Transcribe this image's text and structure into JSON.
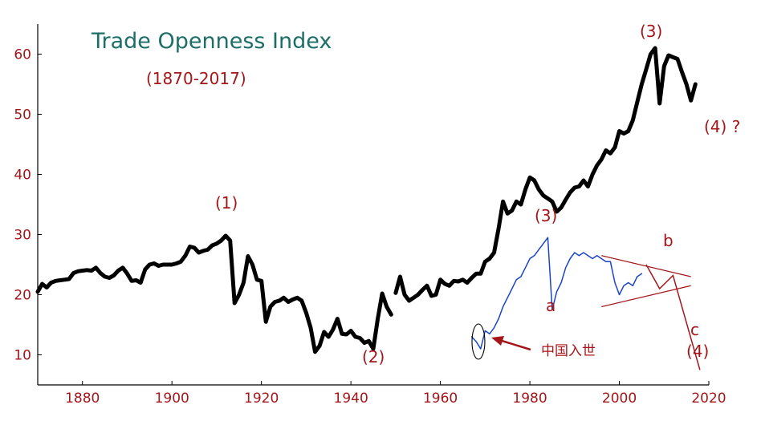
{
  "chart_data": {
    "type": "line",
    "title": "Trade Openness Index",
    "subtitle": "(1870-2017)",
    "xlim": [
      1870,
      2020
    ],
    "ylim": [
      5,
      65
    ],
    "x_ticks": [
      1880,
      1900,
      1920,
      1940,
      1960,
      1980,
      2000,
      2020
    ],
    "y_ticks": [
      10,
      20,
      30,
      40,
      50,
      60
    ],
    "grid": false,
    "colors": {
      "main": "#000000",
      "detail": "#1a44c8",
      "annotation": "#a4161a",
      "title": "#1e6e68"
    },
    "series": [
      {
        "x": [
          1870,
          1871,
          1872,
          1873,
          1874,
          1875,
          1876,
          1877,
          1878,
          1879,
          1880,
          1881,
          1882,
          1883,
          1884,
          1885,
          1886,
          1887,
          1888,
          1889,
          1890,
          1891,
          1892,
          1893,
          1894,
          1895,
          1896,
          1897,
          1898,
          1899,
          1900,
          1901,
          1902,
          1903,
          1904,
          1905,
          1906,
          1907,
          1908,
          1909,
          1910,
          1911,
          1912,
          1913,
          1914,
          1915,
          1916,
          1917,
          1918,
          1919,
          1920,
          1921,
          1922,
          1923,
          1924,
          1925,
          1926,
          1927,
          1928,
          1929,
          1930,
          1931,
          1932,
          1933,
          1934,
          1935,
          1936,
          1937,
          1938,
          1939,
          1940,
          1941,
          1942,
          1943,
          1944,
          1945,
          1946,
          1947,
          1948,
          1949
        ],
        "y": [
          20.5,
          21.8,
          21.2,
          22.0,
          22.3,
          22.4,
          22.5,
          22.6,
          23.6,
          23.9,
          24.0,
          24.1,
          24.0,
          24.5,
          23.6,
          23.0,
          22.8,
          23.2,
          24.0,
          24.5,
          23.5,
          22.3,
          22.4,
          22.0,
          24.2,
          25.0,
          25.2,
          24.8,
          25.0,
          25.0,
          25.0,
          25.2,
          25.5,
          26.5,
          28.0,
          27.8,
          27.0,
          27.3,
          27.5,
          28.2,
          28.5,
          29.0,
          29.8,
          29.0,
          18.6,
          20.0,
          22.0,
          26.4,
          25.0,
          22.5,
          22.3,
          15.5,
          18.0,
          18.8,
          19.0,
          19.5,
          18.8,
          19.2,
          19.5,
          19.0,
          17.0,
          14.5,
          10.5,
          11.5,
          13.8,
          13.0,
          14.2,
          16.0,
          13.5,
          13.4,
          14.0,
          13.0,
          12.8,
          12.0,
          12.3,
          11.0,
          16.0,
          20.2,
          18.0,
          16.7
        ]
      },
      {
        "x": [
          1950,
          1951,
          1952,
          1953,
          1954,
          1955,
          1956,
          1957,
          1958,
          1959,
          1960,
          1961,
          1962,
          1963,
          1964,
          1965,
          1966,
          1967,
          1968,
          1969,
          1970,
          1971,
          1972,
          1973,
          1974,
          1975,
          1976,
          1977,
          1978,
          1979,
          1980,
          1981,
          1982,
          1983,
          1984,
          1985,
          1986,
          1987,
          1988,
          1989,
          1990,
          1991,
          1992,
          1993,
          1994,
          1995,
          1996,
          1997,
          1998,
          1999,
          2000,
          2001,
          2002,
          2003,
          2004,
          2005,
          2006,
          2007,
          2008,
          2009,
          2010,
          2011,
          2012,
          2013,
          2014,
          2015,
          2016,
          2017
        ],
        "y": [
          20.3,
          23.0,
          20.0,
          19.0,
          19.5,
          20.0,
          20.8,
          21.5,
          19.8,
          20.0,
          22.5,
          21.8,
          21.5,
          22.3,
          22.2,
          22.5,
          22.0,
          22.8,
          23.5,
          23.5,
          25.5,
          26.0,
          27.0,
          31.0,
          35.5,
          33.5,
          34.0,
          35.5,
          35.0,
          37.5,
          39.5,
          39.0,
          37.5,
          36.5,
          36.0,
          35.5,
          33.8,
          34.5,
          35.8,
          37.0,
          37.8,
          38.0,
          39.0,
          38.0,
          40.0,
          41.5,
          42.5,
          44.0,
          43.5,
          44.5,
          47.2,
          46.8,
          47.2,
          49.0,
          52.0,
          55.0,
          57.5,
          60.0,
          61.0,
          51.8,
          58.0,
          59.8,
          59.5,
          59.2,
          57.0,
          55.0,
          52.3,
          55.0
        ]
      },
      {
        "x": [
          1967,
          1968,
          1969,
          1970,
          1971,
          1972,
          1973,
          1974,
          1975,
          1976,
          1977,
          1978,
          1979,
          1980,
          1981,
          1982,
          1983,
          1984,
          1985,
          1986,
          1987,
          1988,
          1989,
          1990,
          1991,
          1992,
          1993,
          1994,
          1995,
          1996,
          1997,
          1998,
          1999,
          2000,
          2001,
          2002,
          2003,
          2004,
          2005
        ],
        "y": [
          13.0,
          12.2,
          11.0,
          14.0,
          13.5,
          14.5,
          16.0,
          18.0,
          19.5,
          21.0,
          22.5,
          23.0,
          24.5,
          26.0,
          26.5,
          27.5,
          28.5,
          29.5,
          17.5,
          20.5,
          22.0,
          24.5,
          26.0,
          27.0,
          26.5,
          27.0,
          26.5,
          26.0,
          26.5,
          26.0,
          25.5,
          25.5,
          22.0,
          20.0,
          21.5,
          22.0,
          21.5,
          23.0,
          23.5
        ]
      }
    ],
    "triangle": {
      "upper": [
        [
          1996,
          26.5
        ],
        [
          2016,
          23.0
        ]
      ],
      "lower": [
        [
          1996,
          18.0
        ],
        [
          2016,
          21.5
        ]
      ],
      "zigzag": [
        [
          2006,
          25.0
        ],
        [
          2009,
          21.0
        ],
        [
          2012,
          23.2
        ],
        [
          2018,
          7.5
        ]
      ]
    },
    "annotations": {
      "p1": "(1)",
      "p2": "(2)",
      "p3_main": "(3)",
      "p3_detail": "(3)",
      "p4": "(4) ?",
      "a": "a",
      "b": "b",
      "c": "c",
      "c4": "(4)",
      "china_wto": "中国入世"
    }
  }
}
